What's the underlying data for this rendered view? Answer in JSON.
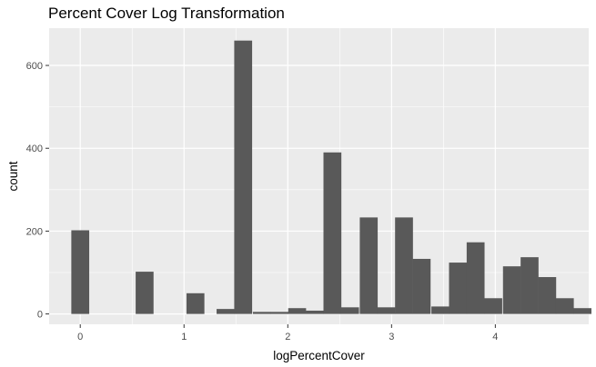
{
  "chart_data": {
    "type": "bar",
    "title": "Percent Cover Log Transformation",
    "xlabel": "logPercentCover",
    "ylabel": "count",
    "xlim": [
      -0.3,
      4.9
    ],
    "ylim": [
      -25,
      690
    ],
    "xticks": [
      0,
      1,
      2,
      3,
      4
    ],
    "yticks": [
      0,
      200,
      400,
      600
    ],
    "grid": true,
    "bin_width": 0.1724,
    "bars": [
      {
        "x": 0.0,
        "value": 202
      },
      {
        "x": 0.62,
        "value": 102
      },
      {
        "x": 1.11,
        "value": 50
      },
      {
        "x": 1.4,
        "value": 12
      },
      {
        "x": 1.57,
        "value": 660
      },
      {
        "x": 1.75,
        "value": 5
      },
      {
        "x": 1.92,
        "value": 5
      },
      {
        "x": 2.09,
        "value": 14
      },
      {
        "x": 2.26,
        "value": 8
      },
      {
        "x": 2.43,
        "value": 390
      },
      {
        "x": 2.6,
        "value": 16
      },
      {
        "x": 2.78,
        "value": 233
      },
      {
        "x": 2.95,
        "value": 16
      },
      {
        "x": 3.12,
        "value": 233
      },
      {
        "x": 3.29,
        "value": 133
      },
      {
        "x": 3.47,
        "value": 18
      },
      {
        "x": 3.64,
        "value": 124
      },
      {
        "x": 3.81,
        "value": 173
      },
      {
        "x": 3.98,
        "value": 38
      },
      {
        "x": 4.16,
        "value": 115
      },
      {
        "x": 4.33,
        "value": 137
      },
      {
        "x": 4.5,
        "value": 89
      },
      {
        "x": 4.67,
        "value": 38
      },
      {
        "x": 4.84,
        "value": 14
      }
    ],
    "colors": {
      "panel_background": "#ebebeb",
      "grid_major": "#ffffff",
      "bar_fill": "#595959",
      "tick_text": "#4d4d4d",
      "tick_mark": "#333333"
    }
  }
}
